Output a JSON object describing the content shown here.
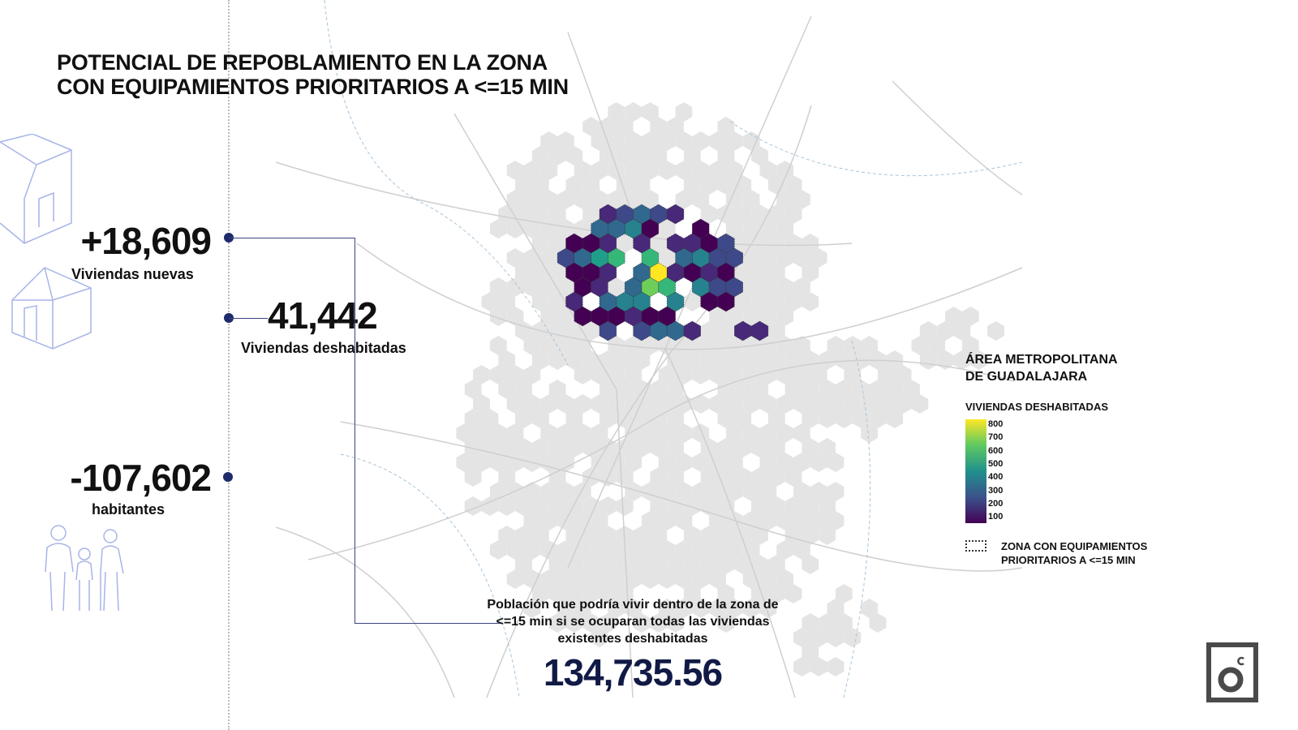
{
  "title": [
    "POTENCIAL DE REPOBLAMIENTO EN LA ZONA",
    "CON EQUIPAMIENTOS PRIORITARIOS A <=15 MIN"
  ],
  "stats": [
    {
      "value": "+18,609",
      "label": "Viviendas nuevas"
    },
    {
      "value": "41,442",
      "label": "Viviendas deshabitadas"
    },
    {
      "value": "-107,602",
      "label": "habitantes"
    }
  ],
  "note": {
    "text": "Población que podría vivir dentro de la zona de <=15 min si se ocuparan todas las viviendas existentes deshabitadas",
    "value": "134,735.56"
  },
  "legend": {
    "title": "ÁREA METROPOLITANA DE GUADALAJARA",
    "subtitle": "VIVIENDAS DESHABITADAS",
    "ticks": [
      "800",
      "700",
      "600",
      "500",
      "400",
      "300",
      "200",
      "100"
    ],
    "zone": "ZONA CON EQUIPAMIENTOS PRIORITARIOS A <=15 MIN"
  },
  "colors": {
    "accent": "#1f2a6b",
    "hex_bg": "#e4e4e4",
    "road": "#c9c9c9"
  }
}
